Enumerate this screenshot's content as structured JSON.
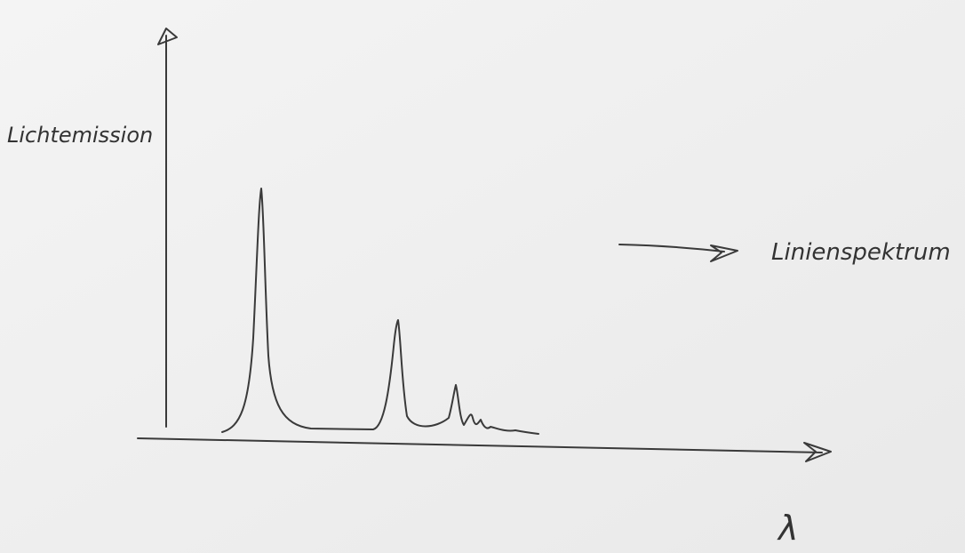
{
  "y_axis_label": "Lichtemission",
  "x_axis_label": "λ",
  "annotation": "Linienspektrum"
}
